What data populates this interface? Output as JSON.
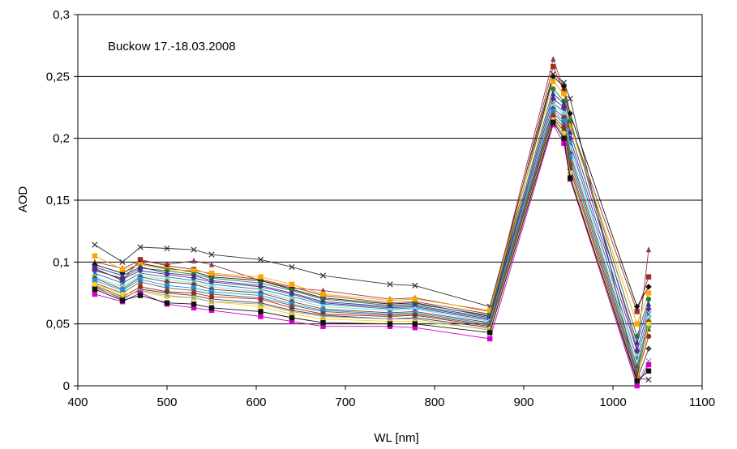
{
  "chart_data": {
    "type": "line",
    "annotation": "Buckow 17.-18.03.2008",
    "xlabel": "WL [nm]",
    "ylabel": "AOD",
    "xlim": [
      400,
      1100
    ],
    "ylim": [
      0,
      0.3
    ],
    "xticks": [
      "400",
      "500",
      "600",
      "700",
      "800",
      "900",
      "1000",
      "1100"
    ],
    "yticks": [
      "0",
      "0,05",
      "0,1",
      "0,15",
      "0,2",
      "0,25",
      "0,3"
    ],
    "grid": "horizontal",
    "x": [
      419,
      450,
      470,
      500,
      530,
      550,
      605,
      640,
      675,
      750,
      778,
      862,
      933,
      945,
      952,
      1027,
      1040
    ],
    "series": [
      {
        "marker": "x",
        "color": "#333333",
        "values": [
          0.114,
          0.1,
          0.112,
          0.111,
          0.11,
          0.106,
          0.102,
          0.096,
          0.089,
          0.082,
          0.081,
          0.064,
          0.252,
          0.245,
          0.232,
          0.006,
          0.005
        ]
      },
      {
        "marker": "triangle",
        "color": "#8e3a52",
        "values": [
          0.1,
          0.095,
          0.101,
          0.098,
          0.101,
          0.098,
          0.085,
          0.079,
          0.077,
          0.07,
          0.071,
          0.06,
          0.264,
          0.24,
          0.215,
          0.03,
          0.11
        ]
      },
      {
        "marker": "square",
        "color": "#9b3125",
        "values": [
          0.095,
          0.085,
          0.102,
          0.097,
          0.094,
          0.09,
          0.086,
          0.08,
          0.073,
          0.067,
          0.068,
          0.058,
          0.258,
          0.238,
          0.212,
          0.06,
          0.088
        ]
      },
      {
        "marker": "diamond",
        "color": "#111111",
        "values": [
          0.098,
          0.091,
          0.099,
          0.095,
          0.092,
          0.088,
          0.085,
          0.078,
          0.071,
          0.066,
          0.067,
          0.056,
          0.25,
          0.242,
          0.22,
          0.064,
          0.08
        ]
      },
      {
        "marker": "square",
        "color": "#ffa500",
        "values": [
          0.105,
          0.094,
          0.098,
          0.094,
          0.093,
          0.091,
          0.088,
          0.082,
          0.074,
          0.069,
          0.07,
          0.061,
          0.246,
          0.236,
          0.21,
          0.05,
          0.075
        ]
      },
      {
        "marker": "circle",
        "color": "#2e7d32",
        "values": [
          0.093,
          0.087,
          0.095,
          0.093,
          0.09,
          0.087,
          0.083,
          0.077,
          0.07,
          0.065,
          0.066,
          0.057,
          0.24,
          0.23,
          0.214,
          0.04,
          0.07
        ]
      },
      {
        "marker": "triangle",
        "color": "#1f3a93",
        "values": [
          0.096,
          0.089,
          0.096,
          0.091,
          0.089,
          0.085,
          0.081,
          0.075,
          0.068,
          0.064,
          0.065,
          0.055,
          0.236,
          0.228,
          0.205,
          0.035,
          0.066
        ]
      },
      {
        "marker": "diamond",
        "color": "#6a1b9a",
        "values": [
          0.094,
          0.086,
          0.093,
          0.09,
          0.087,
          0.084,
          0.08,
          0.074,
          0.067,
          0.063,
          0.064,
          0.054,
          0.232,
          0.225,
          0.2,
          0.028,
          0.062
        ]
      },
      {
        "marker": "x",
        "color": "#00838f",
        "values": [
          0.091,
          0.083,
          0.091,
          0.088,
          0.085,
          0.082,
          0.078,
          0.072,
          0.066,
          0.062,
          0.063,
          0.053,
          0.228,
          0.222,
          0.196,
          0.022,
          0.058
        ]
      },
      {
        "marker": "circle",
        "color": "#87ceeb",
        "values": [
          0.088,
          0.08,
          0.089,
          0.086,
          0.083,
          0.08,
          0.076,
          0.07,
          0.064,
          0.061,
          0.062,
          0.052,
          0.226,
          0.22,
          0.192,
          0.018,
          0.055
        ]
      },
      {
        "marker": "diamond",
        "color": "#7b3f00",
        "values": [
          0.087,
          0.078,
          0.088,
          0.084,
          0.082,
          0.078,
          0.075,
          0.068,
          0.062,
          0.059,
          0.06,
          0.051,
          0.224,
          0.217,
          0.188,
          0.015,
          0.052
        ]
      },
      {
        "marker": "square",
        "color": "#1e90ff",
        "values": [
          0.085,
          0.077,
          0.086,
          0.081,
          0.079,
          0.076,
          0.073,
          0.066,
          0.061,
          0.058,
          0.059,
          0.05,
          0.222,
          0.214,
          0.185,
          0.012,
          0.049
        ]
      },
      {
        "marker": "triangle",
        "color": "#556b2f",
        "values": [
          0.083,
          0.075,
          0.084,
          0.079,
          0.077,
          0.074,
          0.071,
          0.065,
          0.06,
          0.057,
          0.058,
          0.049,
          0.22,
          0.212,
          0.182,
          0.01,
          0.046
        ]
      },
      {
        "marker": "circle",
        "color": "#b22222",
        "values": [
          0.081,
          0.072,
          0.08,
          0.076,
          0.075,
          0.072,
          0.07,
          0.063,
          0.058,
          0.056,
          0.057,
          0.048,
          0.218,
          0.209,
          0.178,
          0.008,
          0.04
        ]
      },
      {
        "marker": "diamond",
        "color": "#444444",
        "values": [
          0.08,
          0.07,
          0.078,
          0.075,
          0.073,
          0.07,
          0.067,
          0.061,
          0.057,
          0.054,
          0.055,
          0.047,
          0.216,
          0.206,
          0.175,
          0.005,
          0.03
        ]
      },
      {
        "marker": "circle",
        "color": "#ffd700",
        "values": [
          0.082,
          0.074,
          0.076,
          0.072,
          0.071,
          0.068,
          0.064,
          0.058,
          0.054,
          0.052,
          0.052,
          0.046,
          0.215,
          0.204,
          0.172,
          0.003,
          0.05
        ]
      },
      {
        "marker": "x",
        "color": "#999999",
        "values": [
          0.079,
          0.071,
          0.077,
          0.073,
          0.071,
          0.068,
          0.066,
          0.06,
          0.056,
          0.054,
          0.054,
          0.045,
          0.214,
          0.202,
          0.17,
          0.002,
          0.02
        ]
      },
      {
        "marker": "square",
        "color": "#d200c8",
        "values": [
          0.074,
          0.068,
          0.075,
          0.066,
          0.063,
          0.061,
          0.056,
          0.052,
          0.048,
          0.048,
          0.047,
          0.038,
          0.211,
          0.196,
          0.167,
          0.0,
          0.017
        ]
      },
      {
        "marker": "square",
        "color": "#111111",
        "values": [
          0.078,
          0.069,
          0.073,
          0.067,
          0.066,
          0.063,
          0.06,
          0.055,
          0.051,
          0.05,
          0.05,
          0.043,
          0.213,
          0.2,
          0.168,
          0.004,
          0.012
        ]
      }
    ]
  }
}
